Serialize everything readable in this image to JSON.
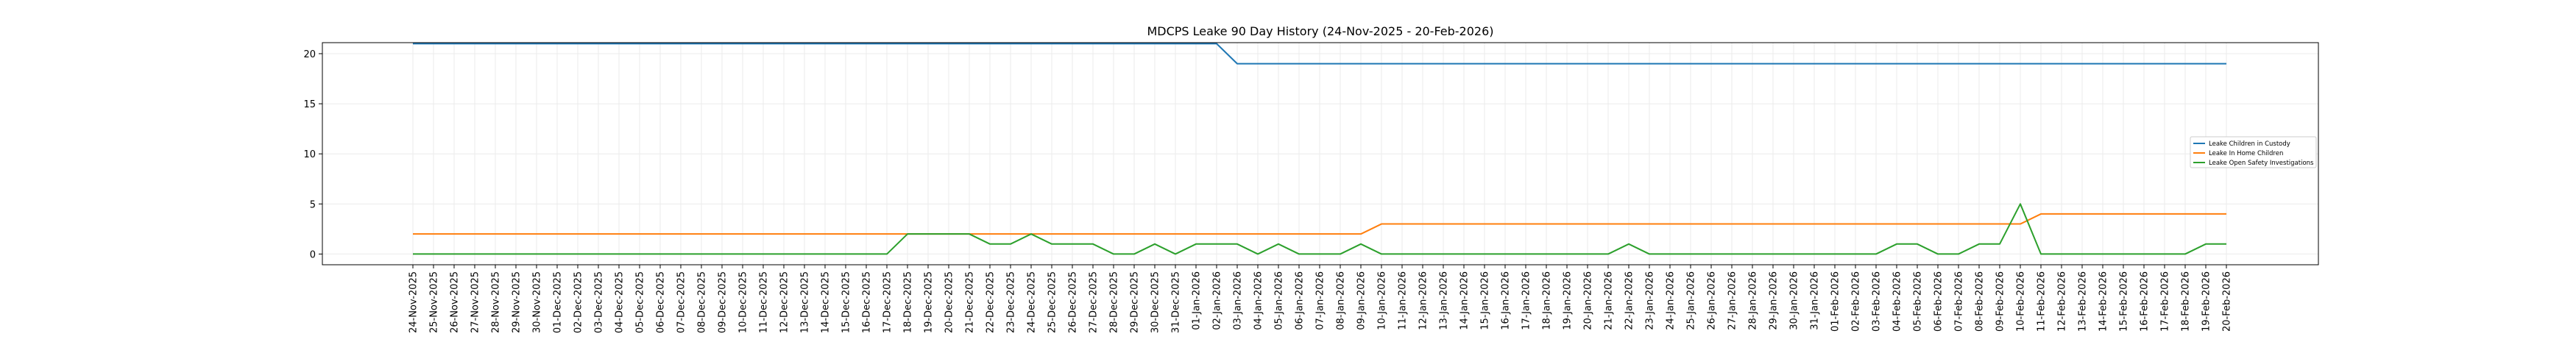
{
  "chart_data": {
    "type": "line",
    "title": "MDCPS Leake 90 Day History (24-Nov-2025 - 20-Feb-2026)",
    "xlabel": "",
    "ylabel": "",
    "ylim": [
      -1.07,
      21.1
    ],
    "yticks": [
      0,
      5,
      10,
      15,
      20
    ],
    "grid": true,
    "legend_position": "center-right",
    "x": [
      "24-Nov-2025",
      "25-Nov-2025",
      "26-Nov-2025",
      "27-Nov-2025",
      "28-Nov-2025",
      "29-Nov-2025",
      "30-Nov-2025",
      "01-Dec-2025",
      "02-Dec-2025",
      "03-Dec-2025",
      "04-Dec-2025",
      "05-Dec-2025",
      "06-Dec-2025",
      "07-Dec-2025",
      "08-Dec-2025",
      "09-Dec-2025",
      "10-Dec-2025",
      "11-Dec-2025",
      "12-Dec-2025",
      "13-Dec-2025",
      "14-Dec-2025",
      "15-Dec-2025",
      "16-Dec-2025",
      "17-Dec-2025",
      "18-Dec-2025",
      "19-Dec-2025",
      "20-Dec-2025",
      "21-Dec-2025",
      "22-Dec-2025",
      "23-Dec-2025",
      "24-Dec-2025",
      "25-Dec-2025",
      "26-Dec-2025",
      "27-Dec-2025",
      "28-Dec-2025",
      "29-Dec-2025",
      "30-Dec-2025",
      "31-Dec-2025",
      "01-Jan-2026",
      "02-Jan-2026",
      "03-Jan-2026",
      "04-Jan-2026",
      "05-Jan-2026",
      "06-Jan-2026",
      "07-Jan-2026",
      "08-Jan-2026",
      "09-Jan-2026",
      "10-Jan-2026",
      "11-Jan-2026",
      "12-Jan-2026",
      "13-Jan-2026",
      "14-Jan-2026",
      "15-Jan-2026",
      "16-Jan-2026",
      "17-Jan-2026",
      "18-Jan-2026",
      "19-Jan-2026",
      "20-Jan-2026",
      "21-Jan-2026",
      "22-Jan-2026",
      "23-Jan-2026",
      "24-Jan-2026",
      "25-Jan-2026",
      "26-Jan-2026",
      "27-Jan-2026",
      "28-Jan-2026",
      "29-Jan-2026",
      "30-Jan-2026",
      "31-Jan-2026",
      "01-Feb-2026",
      "02-Feb-2026",
      "03-Feb-2026",
      "04-Feb-2026",
      "05-Feb-2026",
      "06-Feb-2026",
      "07-Feb-2026",
      "08-Feb-2026",
      "09-Feb-2026",
      "10-Feb-2026",
      "11-Feb-2026",
      "12-Feb-2026",
      "13-Feb-2026",
      "14-Feb-2026",
      "15-Feb-2026",
      "16-Feb-2026",
      "17-Feb-2026",
      "18-Feb-2026",
      "19-Feb-2026",
      "20-Feb-2026"
    ],
    "series": [
      {
        "name": "Leake Children in Custody",
        "color": "#1f77b4",
        "values": [
          21,
          21,
          21,
          21,
          21,
          21,
          21,
          21,
          21,
          21,
          21,
          21,
          21,
          21,
          21,
          21,
          21,
          21,
          21,
          21,
          21,
          21,
          21,
          21,
          21,
          21,
          21,
          21,
          21,
          21,
          21,
          21,
          21,
          21,
          21,
          21,
          21,
          21,
          21,
          21,
          19,
          19,
          19,
          19,
          19,
          19,
          19,
          19,
          19,
          19,
          19,
          19,
          19,
          19,
          19,
          19,
          19,
          19,
          19,
          19,
          19,
          19,
          19,
          19,
          19,
          19,
          19,
          19,
          19,
          19,
          19,
          19,
          19,
          19,
          19,
          19,
          19,
          19,
          19,
          19,
          19,
          19,
          19,
          19,
          19,
          19,
          19,
          19,
          19
        ]
      },
      {
        "name": "Leake In Home Children",
        "color": "#ff7f0e",
        "values": [
          2,
          2,
          2,
          2,
          2,
          2,
          2,
          2,
          2,
          2,
          2,
          2,
          2,
          2,
          2,
          2,
          2,
          2,
          2,
          2,
          2,
          2,
          2,
          2,
          2,
          2,
          2,
          2,
          2,
          2,
          2,
          2,
          2,
          2,
          2,
          2,
          2,
          2,
          2,
          2,
          2,
          2,
          2,
          2,
          2,
          2,
          2,
          3,
          3,
          3,
          3,
          3,
          3,
          3,
          3,
          3,
          3,
          3,
          3,
          3,
          3,
          3,
          3,
          3,
          3,
          3,
          3,
          3,
          3,
          3,
          3,
          3,
          3,
          3,
          3,
          3,
          3,
          3,
          3,
          4,
          4,
          4,
          4,
          4,
          4,
          4,
          4,
          4,
          4
        ]
      },
      {
        "name": "Leake Open Safety Investigations",
        "color": "#2ca02c",
        "values": [
          0,
          0,
          0,
          0,
          0,
          0,
          0,
          0,
          0,
          0,
          0,
          0,
          0,
          0,
          0,
          0,
          0,
          0,
          0,
          0,
          0,
          0,
          0,
          0,
          2,
          2,
          2,
          2,
          1,
          1,
          2,
          1,
          1,
          1,
          0,
          0,
          1,
          0,
          1,
          1,
          1,
          0,
          1,
          0,
          0,
          0,
          1,
          0,
          0,
          0,
          0,
          0,
          0,
          0,
          0,
          0,
          0,
          0,
          0,
          1,
          0,
          0,
          0,
          0,
          0,
          0,
          0,
          0,
          0,
          0,
          0,
          0,
          1,
          1,
          0,
          0,
          1,
          1,
          5,
          0,
          0,
          0,
          0,
          0,
          0,
          0,
          0,
          1,
          1
        ]
      }
    ]
  }
}
